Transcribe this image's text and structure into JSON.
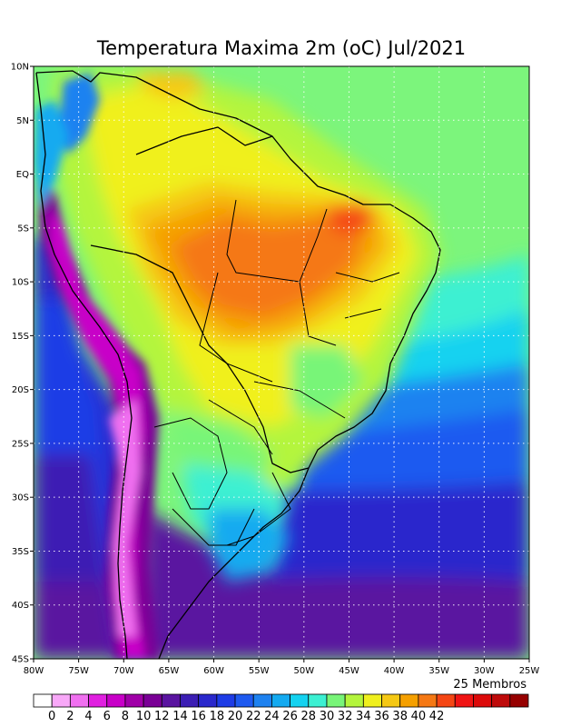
{
  "title": "Temperatura Maxima 2m (oC) Jul/2021",
  "note": "25 Membros",
  "map": {
    "lon_range": [
      -80,
      -25
    ],
    "lat_range": [
      -45,
      10
    ],
    "lon_ticks": [
      {
        "value": -80,
        "label": "80W"
      },
      {
        "value": -75,
        "label": "75W"
      },
      {
        "value": -70,
        "label": "70W"
      },
      {
        "value": -65,
        "label": "65W"
      },
      {
        "value": -60,
        "label": "60W"
      },
      {
        "value": -55,
        "label": "55W"
      },
      {
        "value": -50,
        "label": "50W"
      },
      {
        "value": -45,
        "label": "45W"
      },
      {
        "value": -40,
        "label": "40W"
      },
      {
        "value": -35,
        "label": "35W"
      },
      {
        "value": -30,
        "label": "30W"
      },
      {
        "value": -25,
        "label": "25W"
      }
    ],
    "lat_ticks": [
      {
        "value": 10,
        "label": "10N"
      },
      {
        "value": 5,
        "label": "5N"
      },
      {
        "value": 0,
        "label": "EQ"
      },
      {
        "value": -5,
        "label": "5S"
      },
      {
        "value": -10,
        "label": "10S"
      },
      {
        "value": -15,
        "label": "15S"
      },
      {
        "value": -20,
        "label": "20S"
      },
      {
        "value": -25,
        "label": "25S"
      },
      {
        "value": -30,
        "label": "30S"
      },
      {
        "value": -35,
        "label": "35S"
      },
      {
        "value": -40,
        "label": "40S"
      },
      {
        "value": -45,
        "label": "45S"
      }
    ],
    "ocean_color": "#7cf57c"
  },
  "colorbar": {
    "colors": [
      "#ffffff",
      "#f8a8f8",
      "#f070f0",
      "#e020e0",
      "#c800c8",
      "#a000a8",
      "#7a0096",
      "#5a14a0",
      "#3c1eb4",
      "#2a28cc",
      "#1e3ce6",
      "#1e5af0",
      "#1e82f0",
      "#14aaf0",
      "#14d2f0",
      "#3cf0d2",
      "#78f578",
      "#b4f53c",
      "#f0f01e",
      "#f5c814",
      "#f5a000",
      "#f57814",
      "#f54614",
      "#f01414",
      "#dc0a0a",
      "#be0a0a",
      "#960000"
    ],
    "labels": [
      "0",
      "2",
      "4",
      "6",
      "8",
      "10",
      "12",
      "14",
      "16",
      "18",
      "20",
      "22",
      "24",
      "26",
      "28",
      "30",
      "32",
      "34",
      "36",
      "38",
      "40",
      "42"
    ]
  }
}
